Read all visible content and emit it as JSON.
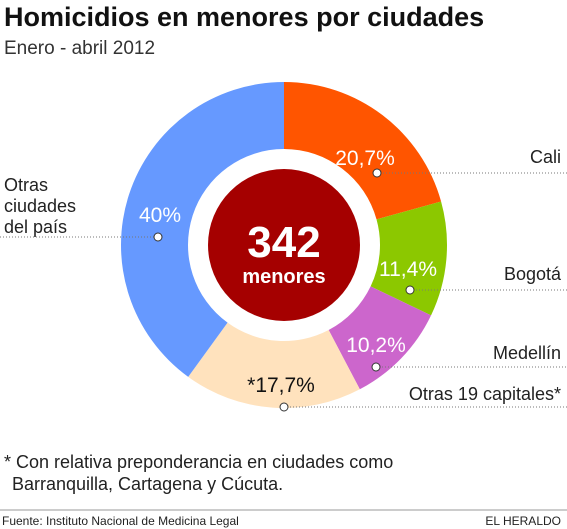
{
  "chart_data": {
    "type": "donut",
    "title": "Homicidios en menores por ciudades",
    "subtitle": "Enero - abril 2012",
    "center_value": "342",
    "center_label": "menores",
    "categories": [
      "Cali",
      "Bogotá",
      "Medellín",
      "Otras 19 capitales*",
      "Otras ciudades del país"
    ],
    "values": [
      20.7,
      11.4,
      10.2,
      17.7,
      40
    ],
    "value_labels": [
      "20,7%",
      "11,4%",
      "10,2%",
      "*17,7%",
      "40%"
    ],
    "colors": [
      "#ff5500",
      "#8cc800",
      "#cc66cc",
      "#ffe2bd",
      "#6699ff"
    ],
    "footnote": [
      "* Con relativa preponderancia en ciudades como",
      "Barranquilla, Cartagena y Cúcuta."
    ],
    "source": "Fuente: Instituto Nacional de Medicina Legal",
    "brand": "EL HERALDO"
  }
}
